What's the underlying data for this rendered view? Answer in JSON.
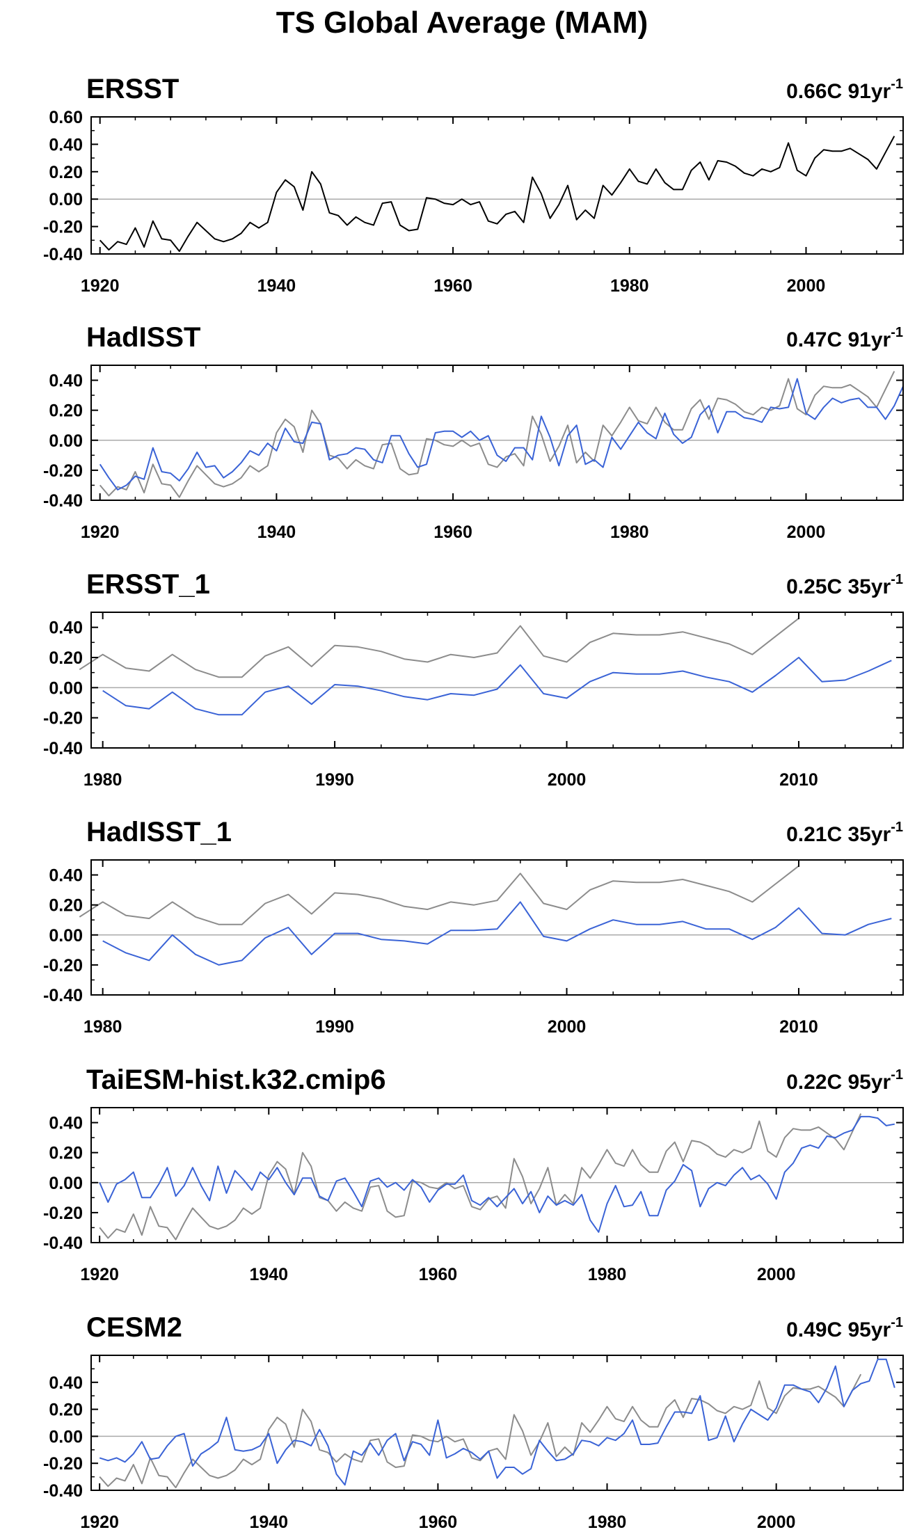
{
  "title": "TS Global Average (MAM)",
  "colors": {
    "obs": "#000000",
    "ref": "#8c8c8c",
    "model": "#3a63d6",
    "zero": "#aaaaaa"
  },
  "chart_data": [
    {
      "type": "line",
      "title": "ERSST",
      "trend": "0.66C 91yr",
      "trend_sup": "-1",
      "xlim": [
        1919,
        2011
      ],
      "ylim": [
        -0.4,
        0.6
      ],
      "xticks": [
        "1920",
        "1940",
        "1960",
        "1980",
        "2000"
      ],
      "yticks": [
        "0.60",
        "0.40",
        "0.20",
        "0.00",
        "-0.20",
        "-0.40"
      ],
      "x_start": 1920,
      "series": [
        {
          "role": "obs",
          "values": [
            -0.3,
            -0.37,
            -0.31,
            -0.33,
            -0.21,
            -0.35,
            -0.16,
            -0.29,
            -0.3,
            -0.38,
            -0.27,
            -0.17,
            -0.23,
            -0.29,
            -0.31,
            -0.29,
            -0.25,
            -0.17,
            -0.21,
            -0.17,
            0.05,
            0.14,
            0.09,
            -0.08,
            0.2,
            0.11,
            -0.1,
            -0.12,
            -0.19,
            -0.13,
            -0.17,
            -0.19,
            -0.03,
            -0.02,
            -0.19,
            -0.23,
            -0.22,
            0.01,
            0.0,
            -0.03,
            -0.04,
            0.0,
            -0.04,
            -0.02,
            -0.16,
            -0.18,
            -0.11,
            -0.09,
            -0.17,
            0.16,
            0.04,
            -0.14,
            -0.04,
            0.1,
            -0.15,
            -0.08,
            -0.14,
            0.1,
            0.03,
            0.12,
            0.22,
            0.13,
            0.11,
            0.22,
            0.12,
            0.07,
            0.07,
            0.21,
            0.27,
            0.14,
            0.28,
            0.27,
            0.24,
            0.19,
            0.17,
            0.22,
            0.2,
            0.23,
            0.41,
            0.21,
            0.17,
            0.3,
            0.36,
            0.35,
            0.35,
            0.37,
            0.33,
            0.29,
            0.22,
            0.34,
            0.46
          ]
        }
      ]
    },
    {
      "type": "line",
      "title": "HadISST",
      "trend": "0.47C 91yr",
      "trend_sup": "-1",
      "xlim": [
        1919,
        2011
      ],
      "ylim": [
        -0.4,
        0.5
      ],
      "xticks": [
        "1920",
        "1940",
        "1960",
        "1980",
        "2000"
      ],
      "yticks": [
        "0.40",
        "0.20",
        "0.00",
        "-0.20",
        "-0.40"
      ],
      "x_start": 1920,
      "series": [
        {
          "role": "ref",
          "values": [
            -0.3,
            -0.37,
            -0.31,
            -0.33,
            -0.21,
            -0.35,
            -0.16,
            -0.29,
            -0.3,
            -0.38,
            -0.27,
            -0.17,
            -0.23,
            -0.29,
            -0.31,
            -0.29,
            -0.25,
            -0.17,
            -0.21,
            -0.17,
            0.05,
            0.14,
            0.09,
            -0.08,
            0.2,
            0.11,
            -0.1,
            -0.12,
            -0.19,
            -0.13,
            -0.17,
            -0.19,
            -0.03,
            -0.02,
            -0.19,
            -0.23,
            -0.22,
            0.01,
            0.0,
            -0.03,
            -0.04,
            0.0,
            -0.04,
            -0.02,
            -0.16,
            -0.18,
            -0.11,
            -0.09,
            -0.17,
            0.16,
            0.04,
            -0.14,
            -0.04,
            0.1,
            -0.15,
            -0.08,
            -0.14,
            0.1,
            0.03,
            0.12,
            0.22,
            0.13,
            0.11,
            0.22,
            0.12,
            0.07,
            0.07,
            0.21,
            0.27,
            0.14,
            0.28,
            0.27,
            0.24,
            0.19,
            0.17,
            0.22,
            0.2,
            0.23,
            0.41,
            0.21,
            0.17,
            0.3,
            0.36,
            0.35,
            0.35,
            0.37,
            0.33,
            0.29,
            0.22,
            0.34,
            0.46
          ]
        },
        {
          "role": "model",
          "values": [
            -0.16,
            -0.25,
            -0.33,
            -0.3,
            -0.24,
            -0.26,
            -0.05,
            -0.21,
            -0.22,
            -0.27,
            -0.19,
            -0.08,
            -0.18,
            -0.17,
            -0.25,
            -0.21,
            -0.15,
            -0.07,
            -0.1,
            -0.02,
            -0.07,
            0.08,
            -0.01,
            -0.02,
            0.12,
            0.11,
            -0.13,
            -0.1,
            -0.09,
            -0.05,
            -0.06,
            -0.13,
            -0.15,
            0.03,
            0.03,
            -0.09,
            -0.18,
            -0.16,
            0.05,
            0.06,
            0.06,
            0.02,
            0.06,
            0.0,
            0.03,
            -0.1,
            -0.14,
            -0.05,
            -0.05,
            -0.13,
            0.16,
            0.02,
            -0.17,
            0.03,
            0.1,
            -0.16,
            -0.13,
            -0.18,
            0.02,
            -0.06,
            0.03,
            0.12,
            0.05,
            0.01,
            0.18,
            0.04,
            -0.02,
            0.02,
            0.17,
            0.23,
            0.05,
            0.19,
            0.19,
            0.15,
            0.14,
            0.12,
            0.22,
            0.21,
            0.22,
            0.41,
            0.18,
            0.14,
            0.22,
            0.28,
            0.25,
            0.27,
            0.28,
            0.22,
            0.22,
            0.14,
            0.23,
            0.36
          ]
        }
      ]
    },
    {
      "type": "line",
      "title": "ERSST_1",
      "trend": "0.25C 35yr",
      "trend_sup": "-1",
      "xlim": [
        1979.5,
        2014.5
      ],
      "ylim": [
        -0.4,
        0.5
      ],
      "xticks": [
        "1980",
        "1990",
        "2000",
        "2010"
      ],
      "yticks": [
        "0.40",
        "0.20",
        "0.00",
        "-0.20",
        "-0.40"
      ],
      "series": [
        {
          "role": "ref",
          "x_start": 1979,
          "values": [
            0.12,
            0.22,
            0.13,
            0.11,
            0.22,
            0.12,
            0.07,
            0.07,
            0.21,
            0.27,
            0.14,
            0.28,
            0.27,
            0.24,
            0.19,
            0.17,
            0.22,
            0.2,
            0.23,
            0.41,
            0.21,
            0.17,
            0.3,
            0.36,
            0.35,
            0.35,
            0.37,
            0.33,
            0.29,
            0.22,
            0.34,
            0.46
          ]
        },
        {
          "role": "model",
          "x_start": 1980,
          "values": [
            -0.02,
            -0.12,
            -0.14,
            -0.03,
            -0.14,
            -0.18,
            -0.18,
            -0.03,
            0.01,
            -0.11,
            0.02,
            0.01,
            -0.02,
            -0.06,
            -0.08,
            -0.04,
            -0.05,
            -0.01,
            0.15,
            -0.04,
            -0.07,
            0.04,
            0.1,
            0.09,
            0.09,
            0.11,
            0.07,
            0.04,
            -0.03,
            0.08,
            0.2,
            0.04,
            0.05,
            0.11,
            0.18
          ]
        }
      ]
    },
    {
      "type": "line",
      "title": "HadISST_1",
      "trend": "0.21C 35yr",
      "trend_sup": "-1",
      "xlim": [
        1979.5,
        2014.5
      ],
      "ylim": [
        -0.4,
        0.5
      ],
      "xticks": [
        "1980",
        "1990",
        "2000",
        "2010"
      ],
      "yticks": [
        "0.40",
        "0.20",
        "0.00",
        "-0.20",
        "-0.40"
      ],
      "series": [
        {
          "role": "ref",
          "x_start": 1979,
          "values": [
            0.12,
            0.22,
            0.13,
            0.11,
            0.22,
            0.12,
            0.07,
            0.07,
            0.21,
            0.27,
            0.14,
            0.28,
            0.27,
            0.24,
            0.19,
            0.17,
            0.22,
            0.2,
            0.23,
            0.41,
            0.21,
            0.17,
            0.3,
            0.36,
            0.35,
            0.35,
            0.37,
            0.33,
            0.29,
            0.22,
            0.34,
            0.46
          ]
        },
        {
          "role": "model",
          "x_start": 1980,
          "values": [
            -0.04,
            -0.12,
            -0.17,
            0.0,
            -0.13,
            -0.2,
            -0.17,
            -0.02,
            0.05,
            -0.13,
            0.01,
            0.01,
            -0.03,
            -0.04,
            -0.06,
            0.03,
            0.03,
            0.04,
            0.22,
            -0.01,
            -0.04,
            0.04,
            0.1,
            0.07,
            0.07,
            0.09,
            0.04,
            0.04,
            -0.03,
            0.05,
            0.18,
            0.01,
            0.0,
            0.07,
            0.11
          ]
        }
      ]
    },
    {
      "type": "line",
      "title": "TaiESM-hist.k32.cmip6",
      "trend": "0.22C 95yr",
      "trend_sup": "-1",
      "xlim": [
        1919,
        2015
      ],
      "ylim": [
        -0.4,
        0.5
      ],
      "xticks": [
        "1920",
        "1940",
        "1960",
        "1980",
        "2000"
      ],
      "yticks": [
        "0.40",
        "0.20",
        "0.00",
        "-0.20",
        "-0.40"
      ],
      "series": [
        {
          "role": "ref",
          "x_start": 1920,
          "values": [
            -0.3,
            -0.37,
            -0.31,
            -0.33,
            -0.21,
            -0.35,
            -0.16,
            -0.29,
            -0.3,
            -0.38,
            -0.27,
            -0.17,
            -0.23,
            -0.29,
            -0.31,
            -0.29,
            -0.25,
            -0.17,
            -0.21,
            -0.17,
            0.05,
            0.14,
            0.09,
            -0.08,
            0.2,
            0.11,
            -0.1,
            -0.12,
            -0.19,
            -0.13,
            -0.17,
            -0.19,
            -0.03,
            -0.02,
            -0.19,
            -0.23,
            -0.22,
            0.01,
            0.0,
            -0.03,
            -0.04,
            0.0,
            -0.04,
            -0.02,
            -0.16,
            -0.18,
            -0.11,
            -0.09,
            -0.17,
            0.16,
            0.04,
            -0.14,
            -0.04,
            0.1,
            -0.15,
            -0.08,
            -0.14,
            0.1,
            0.03,
            0.12,
            0.22,
            0.13,
            0.11,
            0.22,
            0.12,
            0.07,
            0.07,
            0.21,
            0.27,
            0.14,
            0.28,
            0.27,
            0.24,
            0.19,
            0.17,
            0.22,
            0.2,
            0.23,
            0.41,
            0.21,
            0.17,
            0.3,
            0.36,
            0.35,
            0.35,
            0.37,
            0.33,
            0.29,
            0.22,
            0.34,
            0.46
          ]
        },
        {
          "role": "model",
          "x_start": 1920,
          "values": [
            0.0,
            -0.13,
            -0.01,
            0.02,
            0.07,
            -0.1,
            -0.1,
            -0.01,
            0.1,
            -0.09,
            -0.02,
            0.1,
            -0.02,
            -0.12,
            0.11,
            -0.07,
            0.08,
            0.02,
            -0.05,
            0.07,
            0.02,
            0.1,
            0.0,
            -0.08,
            0.03,
            0.03,
            -0.09,
            -0.12,
            0.01,
            0.03,
            -0.06,
            -0.16,
            0.01,
            0.03,
            -0.03,
            0.0,
            -0.05,
            0.02,
            -0.03,
            -0.13,
            -0.05,
            -0.01,
            -0.01,
            0.05,
            -0.12,
            -0.15,
            -0.1,
            -0.16,
            -0.1,
            -0.04,
            -0.14,
            -0.06,
            -0.2,
            -0.09,
            -0.15,
            -0.12,
            -0.15,
            -0.08,
            -0.25,
            -0.33,
            -0.14,
            -0.02,
            -0.16,
            -0.15,
            -0.06,
            -0.22,
            -0.22,
            -0.05,
            0.01,
            0.12,
            0.08,
            -0.16,
            -0.04,
            0.0,
            -0.02,
            0.05,
            0.1,
            0.02,
            0.05,
            -0.01,
            -0.11,
            0.07,
            0.13,
            0.23,
            0.25,
            0.23,
            0.31,
            0.3,
            0.33,
            0.35,
            0.44,
            0.44,
            0.43,
            0.38,
            0.39
          ]
        }
      ]
    },
    {
      "type": "line",
      "title": "CESM2",
      "trend": "0.49C 95yr",
      "trend_sup": "-1",
      "xlim": [
        1919,
        2015
      ],
      "ylim": [
        -0.4,
        0.6
      ],
      "xticks": [
        "1920",
        "1940",
        "1960",
        "1980",
        "2000"
      ],
      "yticks": [
        "0.40",
        "0.20",
        "0.00",
        "-0.20",
        "-0.40"
      ],
      "series": [
        {
          "role": "ref",
          "x_start": 1920,
          "values": [
            -0.3,
            -0.37,
            -0.31,
            -0.33,
            -0.21,
            -0.35,
            -0.16,
            -0.29,
            -0.3,
            -0.38,
            -0.27,
            -0.17,
            -0.23,
            -0.29,
            -0.31,
            -0.29,
            -0.25,
            -0.17,
            -0.21,
            -0.17,
            0.05,
            0.14,
            0.09,
            -0.08,
            0.2,
            0.11,
            -0.1,
            -0.12,
            -0.19,
            -0.13,
            -0.17,
            -0.19,
            -0.03,
            -0.02,
            -0.19,
            -0.23,
            -0.22,
            0.01,
            0.0,
            -0.03,
            -0.04,
            0.0,
            -0.04,
            -0.02,
            -0.16,
            -0.18,
            -0.11,
            -0.09,
            -0.17,
            0.16,
            0.04,
            -0.14,
            -0.04,
            0.1,
            -0.15,
            -0.08,
            -0.14,
            0.1,
            0.03,
            0.12,
            0.22,
            0.13,
            0.11,
            0.22,
            0.12,
            0.07,
            0.07,
            0.21,
            0.27,
            0.14,
            0.28,
            0.27,
            0.24,
            0.19,
            0.17,
            0.22,
            0.2,
            0.23,
            0.41,
            0.21,
            0.17,
            0.3,
            0.36,
            0.35,
            0.35,
            0.37,
            0.33,
            0.29,
            0.22,
            0.34,
            0.46
          ]
        },
        {
          "role": "model",
          "x_start": 1920,
          "values": [
            -0.16,
            -0.18,
            -0.16,
            -0.19,
            -0.13,
            -0.04,
            -0.17,
            -0.16,
            -0.07,
            0.0,
            0.02,
            -0.22,
            -0.13,
            -0.09,
            -0.04,
            0.14,
            -0.1,
            -0.11,
            -0.1,
            -0.07,
            0.02,
            -0.2,
            -0.1,
            -0.03,
            -0.04,
            -0.07,
            0.05,
            -0.07,
            -0.28,
            -0.36,
            -0.11,
            -0.14,
            -0.05,
            -0.14,
            -0.03,
            0.02,
            -0.18,
            -0.04,
            -0.06,
            -0.14,
            0.12,
            -0.16,
            -0.13,
            -0.09,
            -0.12,
            -0.17,
            -0.11,
            -0.31,
            -0.23,
            -0.23,
            -0.28,
            -0.24,
            -0.03,
            -0.11,
            -0.18,
            -0.17,
            -0.13,
            -0.03,
            -0.04,
            -0.07,
            -0.01,
            -0.03,
            0.02,
            0.12,
            -0.06,
            -0.06,
            -0.05,
            0.07,
            0.18,
            0.18,
            0.17,
            0.3,
            -0.03,
            -0.01,
            0.15,
            -0.04,
            0.09,
            0.2,
            0.16,
            0.12,
            0.21,
            0.38,
            0.38,
            0.35,
            0.33,
            0.25,
            0.36,
            0.52,
            0.22,
            0.34,
            0.39,
            0.41,
            0.57,
            0.57,
            0.36
          ]
        }
      ]
    }
  ]
}
